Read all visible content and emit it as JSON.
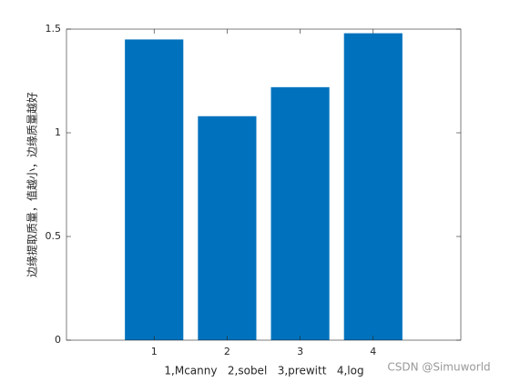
{
  "chart_data": {
    "type": "bar",
    "x": [
      1,
      2,
      3,
      4
    ],
    "values": [
      1.45,
      1.08,
      1.22,
      1.48
    ],
    "color": "#0072bd",
    "xlim": [
      -0.2,
      5.2
    ],
    "xticks": [
      1,
      2,
      3,
      4
    ],
    "ylim": [
      0,
      1.5
    ],
    "yticks": [
      0,
      0.5,
      1,
      1.5
    ],
    "xlabel": "1,Mcanny   2,sobel   3,prewitt   4,log",
    "ylabel": "边缘提取质量，值越小，边缘质量越好",
    "watermark": "CSDN @Simuworld",
    "grid": false
  }
}
